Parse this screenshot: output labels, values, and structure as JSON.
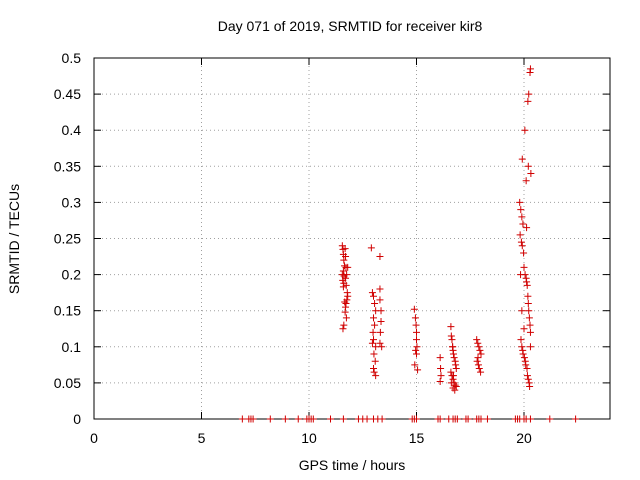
{
  "chart_data": {
    "type": "scatter",
    "title": "Day 071 of 2019, SRMTID for receiver kir8",
    "xlabel": "GPS time / hours",
    "ylabel": "SRMTID / TECUs",
    "xlim": [
      0,
      24
    ],
    "ylim": [
      0,
      0.5
    ],
    "xticks": [
      0,
      5,
      10,
      15,
      20
    ],
    "xtick_labels": [
      "0",
      "5",
      "10",
      "15",
      "20"
    ],
    "yticks": [
      0,
      0.05,
      0.1,
      0.15,
      0.2,
      0.25,
      0.3,
      0.35,
      0.4,
      0.45,
      0.5
    ],
    "ytick_labels": [
      "0",
      "0.05",
      "0.1",
      "0.15",
      "0.2",
      "0.25",
      "0.3",
      "0.35",
      "0.4",
      "0.45",
      "0.5"
    ],
    "grid": true,
    "marker": "plus",
    "color": "#d00000",
    "series": [
      {
        "name": "SRMTID",
        "x": [
          6.9,
          7.2,
          7.3,
          7.4,
          8.2,
          8.9,
          9.5,
          9.9,
          10.0,
          10.1,
          10.2,
          11.0,
          11.6,
          12.3,
          12.5,
          12.7,
          13.0,
          13.2,
          13.4,
          14.8,
          14.9,
          15.0,
          16.0,
          16.1,
          16.5,
          16.7,
          16.8,
          16.9,
          17.3,
          17.4,
          17.8,
          17.9,
          18.0,
          18.3,
          19.6,
          19.7,
          19.8,
          20.0,
          20.1,
          20.3,
          21.2,
          22.4,
          11.55,
          11.58,
          11.6,
          11.62,
          11.65,
          11.6,
          11.63,
          11.57,
          11.62,
          11.6,
          11.68,
          11.7,
          11.72,
          11.75,
          11.7,
          11.73,
          11.78,
          11.76,
          11.72,
          11.7,
          11.68,
          11.74,
          11.8,
          11.8,
          11.66,
          11.62,
          11.58,
          11.55,
          12.9,
          12.95,
          13.0,
          13.05,
          13.1,
          13.0,
          13.05,
          12.98,
          13.0,
          13.1,
          13.02,
          13.08,
          13.0,
          13.03,
          13.1,
          12.95,
          13.3,
          13.3,
          13.35,
          13.35,
          13.32,
          13.3,
          13.38,
          13.3,
          14.9,
          14.95,
          14.98,
          15.0,
          15.02,
          14.96,
          15.0,
          14.92,
          15.05,
          15.0,
          16.1,
          16.12,
          16.14,
          16.1,
          16.6,
          16.62,
          16.65,
          16.68,
          16.7,
          16.72,
          16.75,
          16.8,
          16.82,
          16.85,
          16.6,
          16.65,
          16.7,
          16.75,
          16.8,
          16.85,
          16.62,
          16.68,
          16.72,
          16.78,
          16.7,
          17.8,
          17.85,
          17.9,
          17.95,
          18.0,
          17.82,
          17.88,
          17.92,
          17.98,
          17.86,
          19.8,
          19.85,
          19.9,
          19.95,
          19.82,
          19.88,
          19.92,
          19.98,
          20.0,
          20.05,
          20.1,
          20.12,
          20.15,
          20.18,
          20.2,
          20.22,
          20.25,
          20.28,
          20.3,
          19.86,
          19.9,
          19.94,
          19.96,
          20.02,
          20.06,
          20.08,
          20.14,
          20.16,
          20.2,
          20.24,
          20.26,
          20.3,
          19.84,
          19.9,
          20.0,
          20.1,
          20.2,
          20.32,
          19.92,
          20.04,
          20.18,
          20.22,
          20.28,
          20.3,
          20.12
        ],
        "y": [
          0,
          0,
          0,
          0,
          0,
          0,
          0,
          0,
          0,
          0,
          0,
          0,
          0,
          0,
          0,
          0,
          0,
          0,
          0,
          0,
          0,
          0,
          0,
          0,
          0,
          0,
          0,
          0,
          0,
          0,
          0,
          0,
          0,
          0,
          0,
          0,
          0,
          0,
          0,
          0,
          0,
          0,
          0.24,
          0.235,
          0.228,
          0.22,
          0.212,
          0.205,
          0.198,
          0.192,
          0.188,
          0.183,
          0.236,
          0.225,
          0.21,
          0.2,
          0.195,
          0.185,
          0.175,
          0.165,
          0.16,
          0.155,
          0.148,
          0.14,
          0.21,
          0.17,
          0.162,
          0.13,
          0.125,
          0.2,
          0.237,
          0.175,
          0.17,
          0.16,
          0.15,
          0.14,
          0.13,
          0.12,
          0.11,
          0.1,
          0.09,
          0.08,
          0.07,
          0.065,
          0.06,
          0.105,
          0.225,
          0.18,
          0.15,
          0.135,
          0.12,
          0.105,
          0.1,
          0.165,
          0.152,
          0.14,
          0.13,
          0.12,
          0.1,
          0.095,
          0.09,
          0.075,
          0.068,
          0.11,
          0.085,
          0.07,
          0.06,
          0.052,
          0.128,
          0.115,
          0.11,
          0.1,
          0.095,
          0.09,
          0.085,
          0.08,
          0.075,
          0.07,
          0.065,
          0.06,
          0.055,
          0.05,
          0.047,
          0.045,
          0.05,
          0.1,
          0.06,
          0.04,
          0.043,
          0.11,
          0.105,
          0.1,
          0.095,
          0.09,
          0.08,
          0.075,
          0.07,
          0.065,
          0.085,
          0.3,
          0.29,
          0.28,
          0.27,
          0.255,
          0.245,
          0.24,
          0.23,
          0.21,
          0.2,
          0.195,
          0.19,
          0.185,
          0.17,
          0.16,
          0.15,
          0.14,
          0.13,
          0.12,
          0.11,
          0.1,
          0.095,
          0.09,
          0.085,
          0.08,
          0.075,
          0.07,
          0.06,
          0.055,
          0.05,
          0.045,
          0.1,
          0.2,
          0.15,
          0.125,
          0.33,
          0.35,
          0.34,
          0.36,
          0.4,
          0.44,
          0.45,
          0.48,
          0.485,
          0.265
        ]
      }
    ]
  }
}
